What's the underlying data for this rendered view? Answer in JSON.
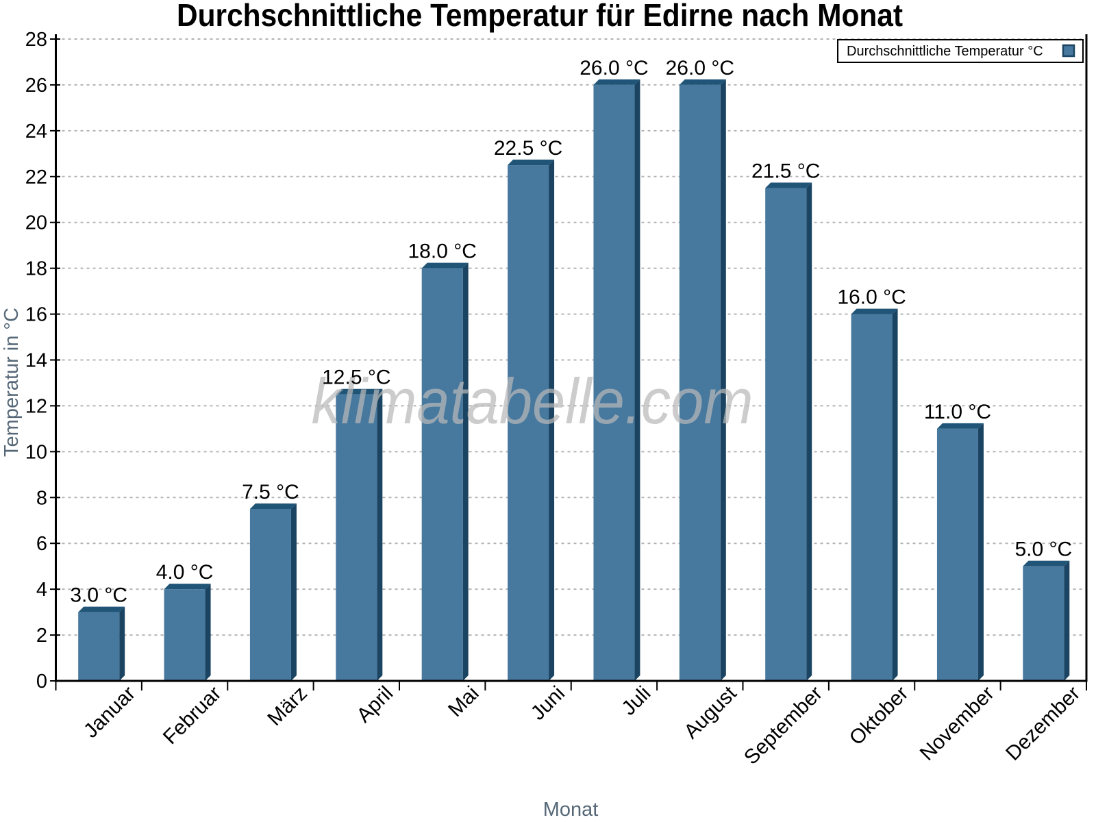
{
  "page": {
    "background": "#ffffff"
  },
  "chart_data": {
    "type": "bar",
    "title": "Durchschnittliche Temperatur für Edirne nach Monat",
    "categories": [
      "Januar",
      "Februar",
      "März",
      "April",
      "Mai",
      "Juni",
      "Juli",
      "August",
      "September",
      "Oktober",
      "November",
      "Dezember"
    ],
    "values": [
      3.0,
      4.0,
      7.5,
      12.5,
      18.0,
      22.5,
      26.0,
      26.0,
      21.5,
      16.0,
      11.0,
      5.0
    ],
    "value_labels": [
      "3.0 °C",
      "4.0 °C",
      "7.5 °C",
      "12.5 °C",
      "18.0 °C",
      "22.5 °C",
      "26.0 °C",
      "26.0 °C",
      "21.5 °C",
      "16.0 °C",
      "11.0 °C",
      "5.0 °C"
    ],
    "xlabel": "Monat",
    "ylabel": "Temperatur in °C",
    "ylim": [
      0,
      28
    ],
    "ytick_step": 2,
    "yticks": [
      0,
      2,
      4,
      6,
      8,
      10,
      12,
      14,
      16,
      18,
      20,
      22,
      24,
      26,
      28
    ],
    "grid": "dashed-horizontal",
    "legend": {
      "label": "Durchschnittliche Temperatur °C",
      "position": "top-right"
    },
    "watermark": "klimatabelle.com",
    "colors": {
      "bar_face": "#47789E",
      "bar_top": "#215577",
      "bar_side": "#1A4462",
      "grid": "#b3b3b3",
      "axis": "#000000",
      "axis_label": "#566878",
      "tick_label": "#000000",
      "value_label": "#000000",
      "watermark": "#b9b9b9",
      "legend_border": "#000000",
      "legend_bg": "#ffffff"
    }
  }
}
